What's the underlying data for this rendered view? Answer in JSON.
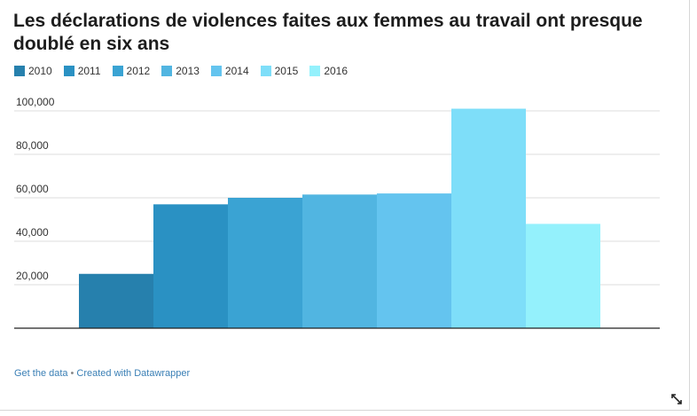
{
  "chart_data": {
    "type": "bar",
    "title": "Les déclarations de violences faites aux femmes au travail ont presque doublé en six ans",
    "categories": [
      "2010",
      "2011",
      "2012",
      "2013",
      "2014",
      "2015",
      "2016"
    ],
    "values": [
      25000,
      57000,
      60000,
      61500,
      62000,
      101000,
      48000
    ],
    "colors": [
      "#2680ad",
      "#2a91c3",
      "#3aa3d3",
      "#51b5e1",
      "#64c4ef",
      "#7edef9",
      "#94f1fc"
    ],
    "ylim": [
      0,
      100000
    ],
    "yticks": [
      "20,000",
      "40,000",
      "60,000",
      "80,000",
      "100,000"
    ],
    "ytick_values": [
      20000,
      40000,
      60000,
      80000,
      100000
    ],
    "xlabel": "",
    "ylabel": "",
    "grid": true,
    "legend": "top-left"
  },
  "footer": {
    "get_data": "Get the data",
    "separator": "•",
    "created_with": "Created with Datawrapper"
  },
  "icons": {
    "resize": "resize-arrow-icon"
  }
}
